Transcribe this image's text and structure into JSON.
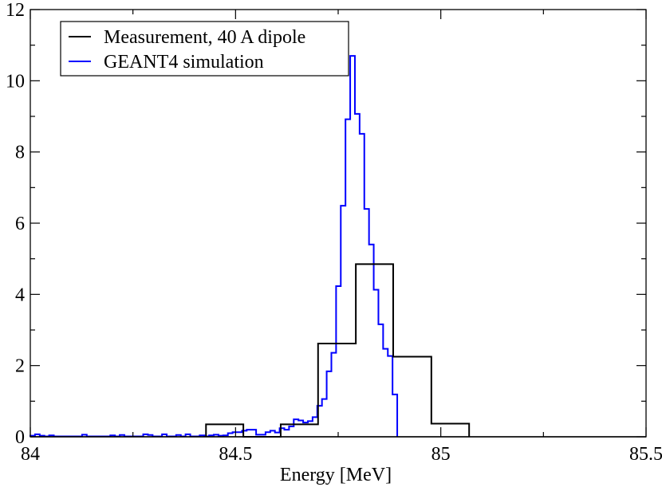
{
  "chart_data": {
    "type": "histogram-step",
    "title": "",
    "xlabel": "Energy [MeV]",
    "ylabel": "",
    "xlim": [
      84,
      85.5
    ],
    "ylim": [
      0,
      12
    ],
    "x_ticks": [
      "84",
      "84.5",
      "85",
      "85.5"
    ],
    "x_tick_values": [
      84,
      84.5,
      85,
      85.5
    ],
    "x_minor_tick_values": [
      84.25,
      84.75,
      85.25
    ],
    "y_ticks": [
      "0",
      "2",
      "4",
      "6",
      "8",
      "10",
      "12"
    ],
    "y_tick_values": [
      0,
      2,
      4,
      6,
      8,
      10,
      12
    ],
    "y_minor_tick_values": [
      1,
      3,
      5,
      7,
      9,
      11
    ],
    "legend_position": "top-left",
    "series": [
      {
        "name": "Measurement, 40 A dipole",
        "color": "#000000",
        "bin_edges": [
          84.428,
          84.519,
          84.61,
          84.701,
          84.793,
          84.884,
          84.977,
          85.069
        ],
        "values": [
          0.35,
          0,
          0.35,
          2.62,
          4.85,
          2.25,
          0.37
        ]
      },
      {
        "name": "GEANT4 simulation",
        "color": "#0000ff",
        "bin_start": 84,
        "bin_width": 0.01146,
        "values": [
          0.03,
          0.07,
          0.03,
          0.01,
          0.04,
          0.01,
          0.01,
          0.01,
          0.01,
          0.01,
          0.01,
          0.06,
          0.01,
          0.01,
          0.01,
          0.01,
          0.01,
          0.04,
          0.01,
          0.05,
          0.01,
          0.01,
          0.01,
          0.01,
          0.07,
          0.05,
          0.01,
          0.01,
          0.07,
          0.01,
          0.01,
          0.05,
          0.01,
          0.07,
          0.01,
          0.01,
          0.04,
          0.01,
          0.04,
          0.06,
          0.03,
          0.04,
          0.1,
          0.13,
          0.13,
          0.17,
          0.2,
          0.2,
          0.06,
          0.06,
          0.13,
          0.17,
          0.12,
          0.24,
          0.2,
          0.29,
          0.49,
          0.46,
          0.4,
          0.44,
          0.55,
          0.87,
          1.06,
          1.84,
          2.36,
          4.23,
          6.49,
          8.92,
          10.7,
          9.07,
          8.51,
          6.4,
          5.4,
          4.13,
          3.16,
          2.47,
          2.27,
          1.19
        ]
      }
    ]
  }
}
